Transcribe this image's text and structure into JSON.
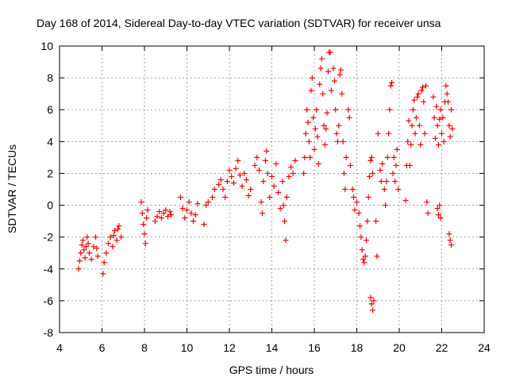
{
  "chart_data": {
    "type": "scatter",
    "title": "Day 168 of 2014, Sidereal Day-to-day VTEC variation (SDTVAR) for receiver unsa",
    "xlabel": "GPS time / hours",
    "ylabel": "SDTVAR / TECUs",
    "xlim": [
      4,
      24
    ],
    "ylim": [
      -8,
      10
    ],
    "xticks": [
      4,
      6,
      8,
      10,
      12,
      14,
      16,
      18,
      20,
      22,
      24
    ],
    "yticks": [
      -8,
      -6,
      -4,
      -2,
      0,
      2,
      4,
      6,
      8,
      10
    ],
    "xtick_labels": [
      "4",
      "6",
      "8",
      "10",
      "12",
      "14",
      "16",
      "18",
      "20",
      "22",
      "24"
    ],
    "ytick_labels": [
      "-8",
      "-6",
      "-4",
      "-2",
      "0",
      "2",
      "4",
      "6",
      "8",
      "10"
    ],
    "grid": true,
    "marker": "+",
    "marker_color": "#ff0000",
    "series": [
      {
        "name": "SDTVAR",
        "points": [
          [
            4.9,
            -4.0
          ],
          [
            4.95,
            -3.5
          ],
          [
            5.0,
            -3.0
          ],
          [
            5.05,
            -2.5
          ],
          [
            5.1,
            -2.2
          ],
          [
            5.15,
            -2.8
          ],
          [
            5.2,
            -3.3
          ],
          [
            5.25,
            -2.6
          ],
          [
            5.3,
            -2.0
          ],
          [
            5.35,
            -2.4
          ],
          [
            5.4,
            -3.0
          ],
          [
            5.5,
            -3.4
          ],
          [
            5.6,
            -2.6
          ],
          [
            5.7,
            -2.0
          ],
          [
            5.75,
            -2.7
          ],
          [
            5.8,
            -3.2
          ],
          [
            6.05,
            -4.3
          ],
          [
            6.1,
            -3.6
          ],
          [
            6.2,
            -3.0
          ],
          [
            6.3,
            -2.4
          ],
          [
            6.4,
            -2.0
          ],
          [
            6.5,
            -2.6
          ],
          [
            6.55,
            -1.9
          ],
          [
            6.6,
            -1.6
          ],
          [
            6.7,
            -2.2
          ],
          [
            6.75,
            -1.5
          ],
          [
            6.8,
            -1.3
          ],
          [
            6.9,
            -2.0
          ],
          [
            7.85,
            0.2
          ],
          [
            7.9,
            -0.5
          ],
          [
            7.95,
            -1.2
          ],
          [
            8.0,
            -1.8
          ],
          [
            8.05,
            -2.4
          ],
          [
            8.1,
            -0.8
          ],
          [
            8.15,
            -0.3
          ],
          [
            8.5,
            -1.0
          ],
          [
            8.6,
            -0.7
          ],
          [
            8.7,
            -0.4
          ],
          [
            8.8,
            -0.8
          ],
          [
            8.9,
            -0.5
          ],
          [
            9.0,
            -0.3
          ],
          [
            9.1,
            -0.7
          ],
          [
            9.2,
            -0.4
          ],
          [
            9.25,
            -0.6
          ],
          [
            9.7,
            0.5
          ],
          [
            9.8,
            -0.2
          ],
          [
            9.9,
            -0.8
          ],
          [
            10.0,
            -0.3
          ],
          [
            10.1,
            0.2
          ],
          [
            10.2,
            -0.5
          ],
          [
            10.3,
            -1.0
          ],
          [
            10.4,
            -0.6
          ],
          [
            10.5,
            0.1
          ],
          [
            10.8,
            -1.2
          ],
          [
            10.9,
            0.0
          ],
          [
            11.0,
            0.2
          ],
          [
            11.2,
            0.5
          ],
          [
            11.3,
            1.0
          ],
          [
            11.5,
            1.3
          ],
          [
            11.6,
            1.6
          ],
          [
            11.7,
            1.0
          ],
          [
            11.8,
            0.5
          ],
          [
            11.9,
            1.5
          ],
          [
            12.0,
            2.2
          ],
          [
            12.1,
            1.8
          ],
          [
            12.2,
            1.4
          ],
          [
            12.3,
            2.3
          ],
          [
            12.4,
            2.8
          ],
          [
            12.5,
            1.9
          ],
          [
            12.6,
            1.2
          ],
          [
            12.7,
            2.0
          ],
          [
            12.8,
            1.6
          ],
          [
            12.9,
            0.6
          ],
          [
            13.0,
            1.0
          ],
          [
            13.2,
            2.5
          ],
          [
            13.3,
            3.0
          ],
          [
            13.4,
            2.2
          ],
          [
            13.5,
            0.2
          ],
          [
            13.55,
            -0.5
          ],
          [
            13.6,
            1.5
          ],
          [
            13.7,
            2.8
          ],
          [
            13.75,
            3.4
          ],
          [
            13.8,
            2.0
          ],
          [
            13.9,
            0.5
          ],
          [
            14.0,
            1.8
          ],
          [
            14.1,
            1.2
          ],
          [
            14.2,
            2.6
          ],
          [
            14.3,
            0.8
          ],
          [
            14.4,
            -0.2
          ],
          [
            14.5,
            1.5
          ],
          [
            14.55,
            0.0
          ],
          [
            14.6,
            -1.0
          ],
          [
            14.65,
            -2.2
          ],
          [
            14.7,
            0.5
          ],
          [
            14.8,
            1.8
          ],
          [
            14.9,
            2.4
          ],
          [
            15.0,
            2.0
          ],
          [
            15.1,
            2.8
          ],
          [
            15.5,
            2.0
          ],
          [
            15.55,
            3.0
          ],
          [
            15.6,
            4.5
          ],
          [
            15.65,
            6.0
          ],
          [
            15.7,
            5.2
          ],
          [
            15.75,
            4.0
          ],
          [
            15.8,
            3.0
          ],
          [
            15.85,
            7.2
          ],
          [
            15.9,
            8.0
          ],
          [
            15.95,
            5.5
          ],
          [
            16.0,
            3.5
          ],
          [
            16.05,
            4.8
          ],
          [
            16.1,
            6.0
          ],
          [
            16.15,
            4.3
          ],
          [
            16.2,
            2.6
          ],
          [
            16.25,
            7.6
          ],
          [
            16.3,
            8.6
          ],
          [
            16.35,
            9.2
          ],
          [
            16.4,
            7.0
          ],
          [
            16.45,
            5.0
          ],
          [
            16.5,
            3.8
          ],
          [
            16.55,
            4.8
          ],
          [
            16.6,
            5.8
          ],
          [
            16.65,
            8.4
          ],
          [
            16.7,
            9.6
          ],
          [
            16.75,
            9.6
          ],
          [
            16.8,
            7.2
          ],
          [
            16.9,
            8.6
          ],
          [
            16.95,
            7.8
          ],
          [
            17.0,
            6.0
          ],
          [
            17.05,
            4.5
          ],
          [
            17.1,
            4.0
          ],
          [
            17.15,
            5.0
          ],
          [
            17.2,
            8.2
          ],
          [
            17.25,
            8.5
          ],
          [
            17.3,
            7.0
          ],
          [
            17.35,
            4.0
          ],
          [
            17.4,
            2.0
          ],
          [
            17.45,
            1.0
          ],
          [
            17.5,
            3.0
          ],
          [
            17.6,
            6.0
          ],
          [
            17.65,
            5.5
          ],
          [
            17.7,
            2.5
          ],
          [
            17.8,
            1.0
          ],
          [
            17.85,
            0.5
          ],
          [
            17.9,
            -0.3
          ],
          [
            18.0,
            0.2
          ],
          [
            18.1,
            -0.5
          ],
          [
            18.15,
            -1.3
          ],
          [
            18.2,
            -2.0
          ],
          [
            18.25,
            -2.8
          ],
          [
            18.3,
            -3.4
          ],
          [
            18.35,
            -3.6
          ],
          [
            18.4,
            -3.2
          ],
          [
            18.45,
            -2.2
          ],
          [
            18.5,
            -1.0
          ],
          [
            18.55,
            0.5
          ],
          [
            18.6,
            1.8
          ],
          [
            18.65,
            2.8
          ],
          [
            18.7,
            3.0
          ],
          [
            18.75,
            2.0
          ],
          [
            18.65,
            -5.8
          ],
          [
            18.7,
            -6.2
          ],
          [
            18.75,
            -6.6
          ],
          [
            18.8,
            -6.0
          ],
          [
            18.9,
            -1.0
          ],
          [
            18.95,
            -3.2
          ],
          [
            19.0,
            4.5
          ],
          [
            19.1,
            2.2
          ],
          [
            19.15,
            1.5
          ],
          [
            19.2,
            2.6
          ],
          [
            19.3,
            1.0
          ],
          [
            19.35,
            0.0
          ],
          [
            19.4,
            1.5
          ],
          [
            19.45,
            3.0
          ],
          [
            19.5,
            4.5
          ],
          [
            19.55,
            6.0
          ],
          [
            19.6,
            7.5
          ],
          [
            19.65,
            7.7
          ],
          [
            19.7,
            2.0
          ],
          [
            19.75,
            3.0
          ],
          [
            19.8,
            1.5
          ],
          [
            19.85,
            2.5
          ],
          [
            19.9,
            3.5
          ],
          [
            19.95,
            1.0
          ],
          [
            20.3,
            0.3
          ],
          [
            20.35,
            2.5
          ],
          [
            20.4,
            4.0
          ],
          [
            20.45,
            5.3
          ],
          [
            20.5,
            2.5
          ],
          [
            20.55,
            3.8
          ],
          [
            20.6,
            5.0
          ],
          [
            20.65,
            6.0
          ],
          [
            20.7,
            6.6
          ],
          [
            20.75,
            4.5
          ],
          [
            20.8,
            5.5
          ],
          [
            20.85,
            6.8
          ],
          [
            20.9,
            7.0
          ],
          [
            20.95,
            5.0
          ],
          [
            21.0,
            3.8
          ],
          [
            21.05,
            7.2
          ],
          [
            21.1,
            7.4
          ],
          [
            21.15,
            6.5
          ],
          [
            21.2,
            4.5
          ],
          [
            21.25,
            7.5
          ],
          [
            21.3,
            0.2
          ],
          [
            21.35,
            -0.5
          ],
          [
            21.6,
            6.8
          ],
          [
            21.65,
            5.5
          ],
          [
            21.7,
            4.2
          ],
          [
            21.75,
            6.2
          ],
          [
            21.8,
            5.0
          ],
          [
            21.85,
            3.8
          ],
          [
            21.9,
            5.4
          ],
          [
            21.95,
            6.0
          ],
          [
            22.0,
            4.5
          ],
          [
            22.05,
            5.5
          ],
          [
            22.1,
            4.0
          ],
          [
            22.15,
            6.5
          ],
          [
            22.2,
            7.5
          ],
          [
            22.25,
            7.0
          ],
          [
            22.3,
            6.5
          ],
          [
            22.35,
            5.0
          ],
          [
            22.4,
            4.3
          ],
          [
            22.45,
            6.0
          ],
          [
            22.5,
            4.8
          ],
          [
            21.8,
            -0.2
          ],
          [
            21.85,
            -0.6
          ],
          [
            21.9,
            0.0
          ],
          [
            21.95,
            -0.8
          ],
          [
            22.35,
            -1.8
          ],
          [
            22.4,
            -2.2
          ],
          [
            22.45,
            -2.5
          ]
        ]
      }
    ]
  }
}
